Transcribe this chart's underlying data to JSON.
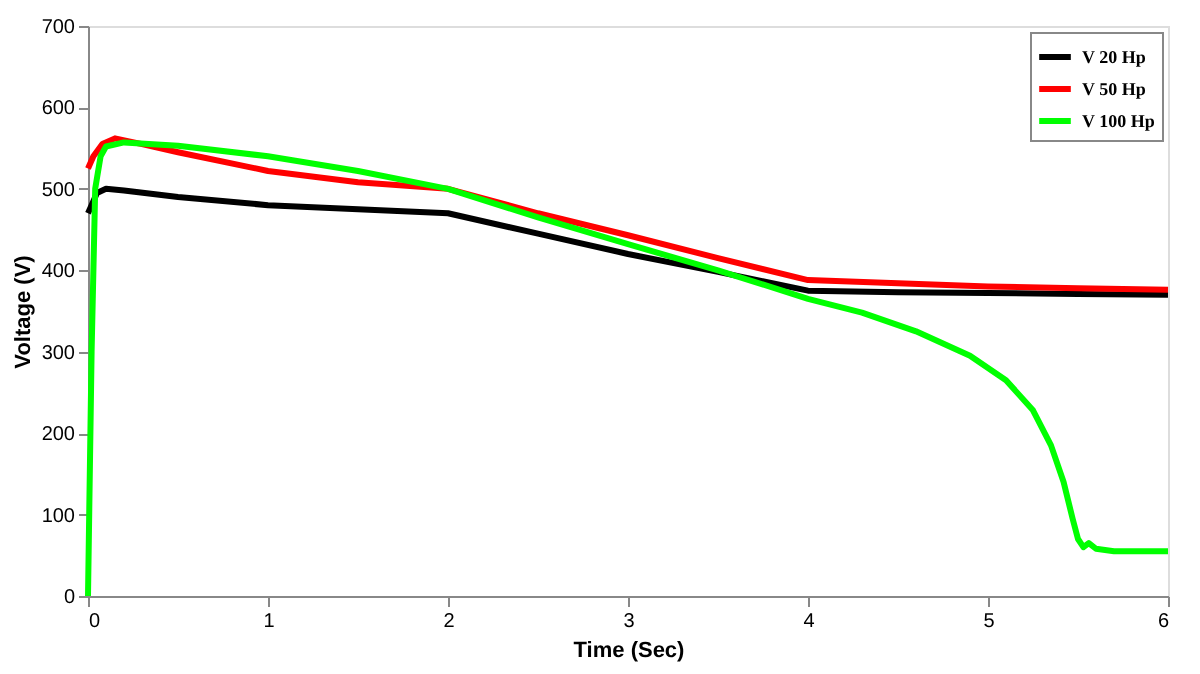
{
  "chart_data": {
    "type": "line",
    "xlabel": "Time (Sec)",
    "ylabel": "Voltage (V)",
    "xlim": [
      0,
      6
    ],
    "ylim": [
      0,
      700
    ],
    "xticks": [
      0,
      1,
      2,
      3,
      4,
      5,
      6
    ],
    "yticks": [
      0,
      100,
      200,
      300,
      400,
      500,
      600,
      700
    ],
    "grid": false,
    "legend": "top right",
    "marker": "none",
    "line_style": "solid",
    "series": [
      {
        "name": "V 20  Hp",
        "color": "#000000",
        "x": [
          0,
          0.02,
          0.05,
          0.1,
          0.2,
          0.5,
          1,
          1.5,
          2,
          2.5,
          3,
          3.5,
          4,
          4.5,
          5,
          5.5,
          6
        ],
        "values": [
          470,
          480,
          495,
          500,
          498,
          490,
          480,
          475,
          470,
          445,
          420,
          398,
          375,
          373,
          372,
          371,
          370
        ]
      },
      {
        "name": "V 50   Hp",
        "color": "#ff0000",
        "x": [
          0,
          0.03,
          0.08,
          0.15,
          0.3,
          0.5,
          1,
          1.5,
          2,
          2.5,
          3,
          3.5,
          4,
          4.5,
          5,
          5.5,
          6
        ],
        "values": [
          525,
          540,
          555,
          562,
          555,
          545,
          522,
          508,
          500,
          470,
          443,
          415,
          388,
          384,
          380,
          378,
          376
        ]
      },
      {
        "name": "V 100 Hp",
        "color": "#00ff00",
        "x": [
          0,
          0.02,
          0.04,
          0.07,
          0.1,
          0.2,
          0.5,
          1,
          1.5,
          2,
          2.5,
          3,
          3.5,
          4,
          4.3,
          4.6,
          4.9,
          5.1,
          5.25,
          5.35,
          5.42,
          5.47,
          5.5,
          5.53,
          5.56,
          5.6,
          5.7,
          6
        ],
        "values": [
          0,
          300,
          500,
          540,
          552,
          557,
          553,
          540,
          522,
          500,
          465,
          432,
          400,
          365,
          348,
          325,
          295,
          265,
          228,
          185,
          140,
          95,
          70,
          60,
          65,
          58,
          55,
          55
        ]
      }
    ]
  }
}
